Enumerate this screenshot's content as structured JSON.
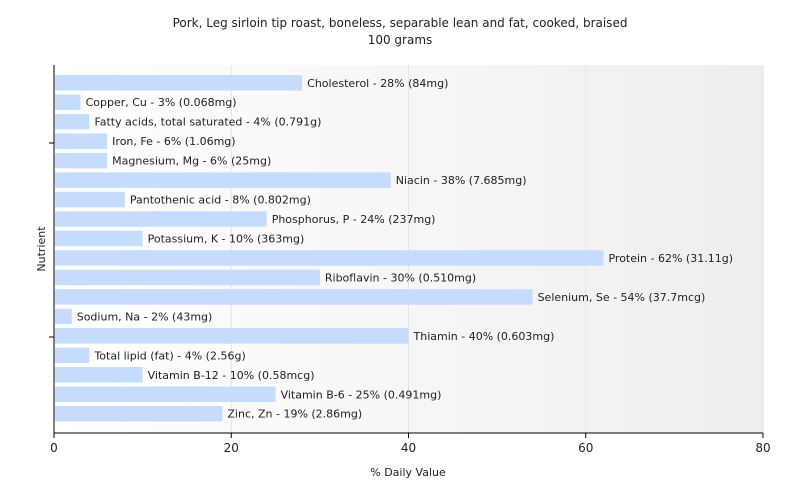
{
  "chart_data": {
    "type": "bar",
    "orientation": "horizontal",
    "title": "Pork, Leg sirloin tip roast, boneless, separable lean and fat, cooked, braised",
    "subtitle": "100 grams",
    "xlabel": "% Daily Value",
    "ylabel": "Nutrient",
    "xlim": [
      0,
      80
    ],
    "xticks": [
      "0",
      "20",
      "40",
      "60",
      "80"
    ],
    "grid": "vertical",
    "colors": {
      "bar": "#c6dcfc",
      "axis": "#000000",
      "grid": "#e4e4e4"
    },
    "categories": [
      "Cholesterol",
      "Copper, Cu",
      "Fatty acids, total saturated",
      "Iron, Fe",
      "Magnesium, Mg",
      "Niacin",
      "Pantothenic acid",
      "Phosphorus, P",
      "Potassium, K",
      "Protein",
      "Riboflavin",
      "Selenium, Se",
      "Sodium, Na",
      "Thiamin",
      "Total lipid (fat)",
      "Vitamin B-12",
      "Vitamin B-6",
      "Zinc, Zn"
    ],
    "values": [
      28,
      3,
      4,
      6,
      6,
      38,
      8,
      24,
      10,
      62,
      30,
      54,
      2,
      40,
      4,
      10,
      25,
      19
    ],
    "labels": [
      "Cholesterol - 28% (84mg)",
      "Copper, Cu - 3% (0.068mg)",
      "Fatty acids, total saturated - 4% (0.791g)",
      "Iron, Fe - 6% (1.06mg)",
      "Magnesium, Mg - 6% (25mg)",
      "Niacin - 38% (7.685mg)",
      "Pantothenic acid - 8% (0.802mg)",
      "Phosphorus, P - 24% (237mg)",
      "Potassium, K - 10% (363mg)",
      "Protein - 62% (31.11g)",
      "Riboflavin - 30% (0.510mg)",
      "Selenium, Se - 54% (37.7mcg)",
      "Sodium, Na - 2% (43mg)",
      "Thiamin - 40% (0.603mg)",
      "Total lipid (fat) - 4% (2.56g)",
      "Vitamin B-12 - 10% (0.58mcg)",
      "Vitamin B-6 - 25% (0.491mg)",
      "Zinc, Zn - 19% (2.86mg)"
    ]
  }
}
